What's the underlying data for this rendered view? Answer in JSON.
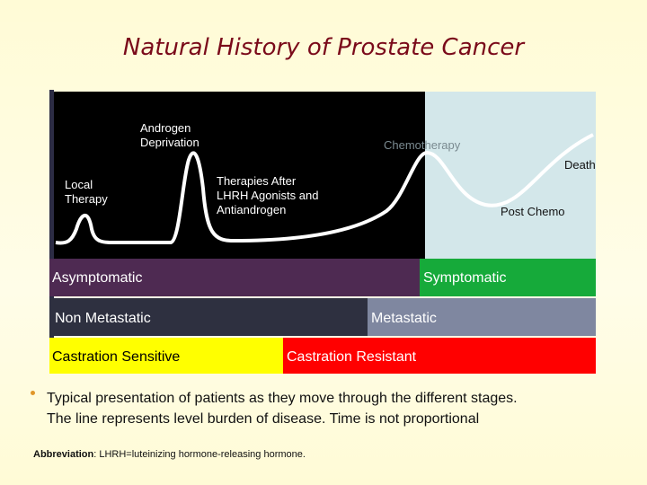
{
  "title": "Natural History of Prostate Cancer",
  "curve_labels": {
    "local_therapy": [
      "Local",
      "Therapy"
    ],
    "androgen_deprivation": [
      "Androgen",
      "Deprivation"
    ],
    "therapies_after": [
      "Therapies After",
      "LHRH Agonists and",
      "Antiandrogen"
    ],
    "chemotherapy": "Chemotherapy",
    "death": "Death",
    "post_chemo": "Post Chemo"
  },
  "stages": [
    {
      "left": "Asymptomatic",
      "right": "Symptomatic"
    },
    {
      "left": "Non Metastatic",
      "right": "Metastatic"
    },
    {
      "left": "Castration Sensitive",
      "right": "Castration Resistant"
    }
  ],
  "bullet": [
    "Typical presentation of patients as they move through the different stages.",
    "The line represents level burden of disease. Time is not proportional"
  ],
  "abbreviation": {
    "label": "Abbreviation",
    "text": ": LHRH=luteinizing hormone-releasing hormone."
  }
}
